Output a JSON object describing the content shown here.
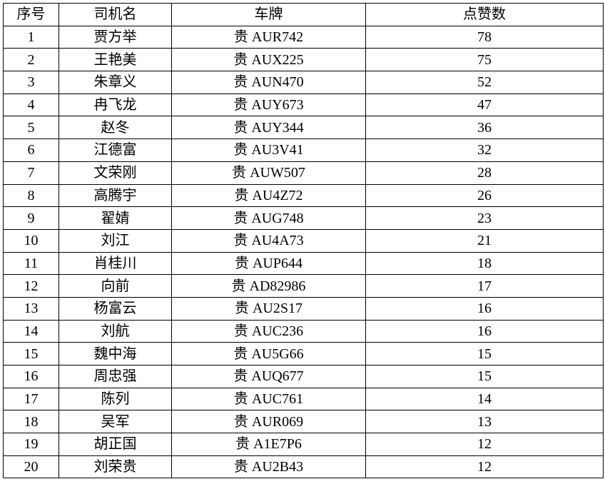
{
  "table": {
    "headers": [
      "序号",
      "司机名",
      "车牌",
      "点赞数"
    ],
    "rows": [
      [
        "1",
        "贾方举",
        "贵 AUR742",
        "78"
      ],
      [
        "2",
        "王艳美",
        "贵 AUX225",
        "75"
      ],
      [
        "3",
        "朱章义",
        "贵 AUN470",
        "52"
      ],
      [
        "4",
        "冉飞龙",
        "贵 AUY673",
        "47"
      ],
      [
        "5",
        "赵冬",
        "贵 AUY344",
        "36"
      ],
      [
        "6",
        "江德富",
        "贵 AU3V41",
        "32"
      ],
      [
        "7",
        "文荣刚",
        "贵 AUW507",
        "28"
      ],
      [
        "8",
        "高腾宇",
        "贵 AU4Z72",
        "26"
      ],
      [
        "9",
        "翟婧",
        "贵 AUG748",
        "23"
      ],
      [
        "10",
        "刘江",
        "贵 AU4A73",
        "21"
      ],
      [
        "11",
        "肖桂川",
        "贵 AUP644",
        "18"
      ],
      [
        "12",
        "向前",
        "贵 AD82986",
        "17"
      ],
      [
        "13",
        "杨富云",
        "贵 AU2S17",
        "16"
      ],
      [
        "14",
        "刘航",
        "贵 AUC236",
        "16"
      ],
      [
        "15",
        "魏中海",
        "贵 AU5G66",
        "15"
      ],
      [
        "16",
        "周忠强",
        "贵 AUQ677",
        "15"
      ],
      [
        "17",
        "陈列",
        "贵 AUC761",
        "14"
      ],
      [
        "18",
        "吴军",
        "贵 AUR069",
        "13"
      ],
      [
        "19",
        "胡正国",
        "贵 A1E7P6",
        "12"
      ],
      [
        "20",
        "刘荣贵",
        "贵 AU2B43",
        "12"
      ]
    ]
  }
}
